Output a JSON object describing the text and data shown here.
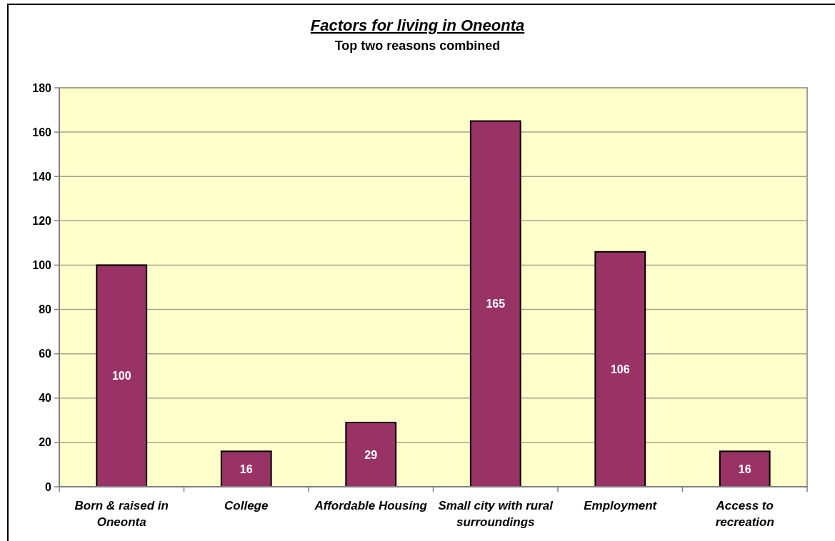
{
  "chart_data": {
    "type": "bar",
    "title": "Factors for living in Oneonta",
    "subtitle": "Top two reasons combined",
    "categories": [
      "Born & raised in Oneonta",
      "College",
      "Affordable Housing",
      "Small city with rural surroundings",
      "Employment",
      "Access to recreation"
    ],
    "values": [
      100,
      16,
      29,
      165,
      106,
      16
    ],
    "color": "#993366",
    "ylim": [
      0,
      180
    ],
    "yticks": [
      0,
      20,
      40,
      60,
      80,
      100,
      120,
      140,
      160,
      180
    ],
    "grid": "y",
    "data_labels": true
  }
}
